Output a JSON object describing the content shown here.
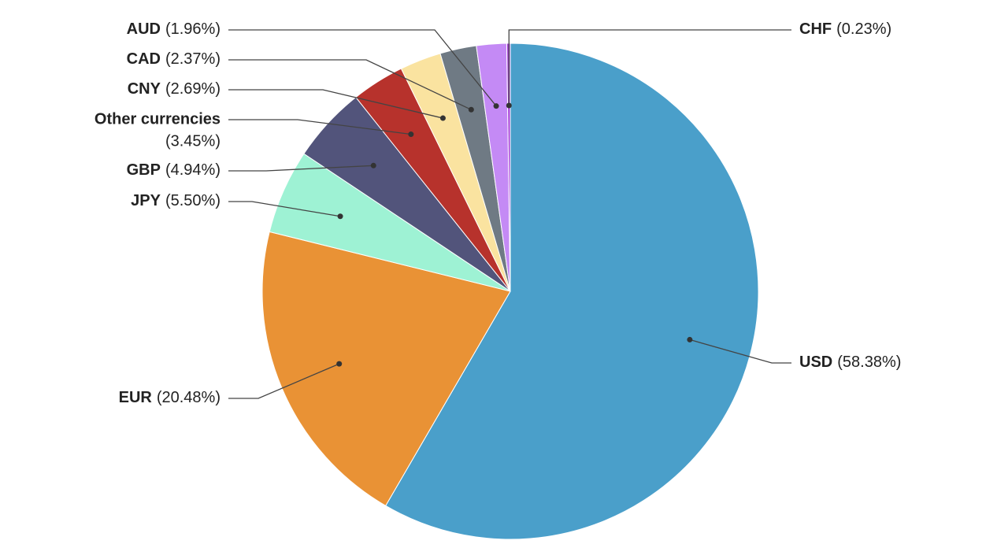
{
  "chart_data": {
    "type": "pie",
    "categories": [
      "USD",
      "EUR",
      "JPY",
      "GBP",
      "Other currencies",
      "CNY",
      "CAD",
      "AUD",
      "CHF"
    ],
    "values": [
      58.38,
      20.48,
      5.5,
      4.94,
      3.45,
      2.69,
      2.37,
      1.96,
      0.23
    ],
    "value_labels": [
      "(58.38%)",
      "(20.48%)",
      "(5.50%)",
      "(4.94%)",
      "(3.45%)",
      "(2.69%)",
      "(2.37%)",
      "(1.96%)",
      "(0.23%)"
    ],
    "colors": [
      "#4a9fca",
      "#e99235",
      "#9ef2d4",
      "#52547b",
      "#b7322c",
      "#fae3a0",
      "#6f7a84",
      "#c48af5",
      "#a53fd8"
    ]
  }
}
